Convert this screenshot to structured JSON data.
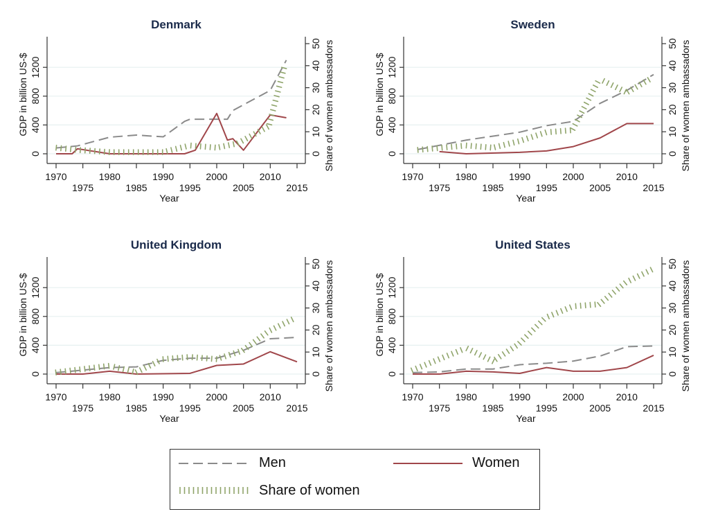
{
  "chart_data": [
    {
      "type": "line",
      "title": "Denmark",
      "xlabel": "Year",
      "ylabel": "GDP in billion US-$",
      "y2label": "Share of women ambassadors",
      "xlim": [
        1970,
        2015
      ],
      "ylim": [
        -100,
        1580
      ],
      "y2lim": [
        -3,
        52
      ],
      "xticks_top": [
        "1970",
        "1980",
        "1990",
        "2000",
        "2010"
      ],
      "xticks_bottom": [
        "1975",
        "1985",
        "1995",
        "2005",
        "2015"
      ],
      "yticks": [
        "0",
        "400",
        "800",
        "1200"
      ],
      "y2ticks": [
        "0",
        "10",
        "20",
        "30",
        "40",
        "50"
      ],
      "grid": true,
      "series": [
        {
          "name": "Men",
          "axis": "left",
          "x": [
            1970,
            1974,
            1980,
            1985,
            1990,
            1994,
            1995,
            2000,
            2002,
            2003,
            2010,
            2013
          ],
          "values": [
            80,
            110,
            230,
            260,
            235,
            450,
            480,
            480,
            480,
            600,
            880,
            1300
          ]
        },
        {
          "name": "Women",
          "axis": "left",
          "x": [
            1970,
            1973,
            1974,
            1980,
            1990,
            1994,
            1996,
            2000,
            2002,
            2003,
            2005,
            2010,
            2013
          ],
          "values": [
            0,
            0,
            70,
            0,
            0,
            0,
            50,
            560,
            190,
            210,
            50,
            540,
            500
          ]
        },
        {
          "name": "Share of women",
          "axis": "right",
          "x": [
            1970,
            1974,
            1980,
            1990,
            1995,
            2000,
            2004,
            2010,
            2013
          ],
          "values": [
            2,
            1,
            0,
            0,
            3,
            2,
            4,
            12,
            40
          ]
        }
      ]
    },
    {
      "type": "line",
      "title": "Sweden",
      "xlabel": "Year",
      "ylabel": "GDP in billion US-$",
      "y2label": "Share of women ambassadors",
      "xlim": [
        1970,
        2015
      ],
      "ylim": [
        -100,
        1580
      ],
      "y2lim": [
        -3,
        52
      ],
      "xticks_top": [
        "1970",
        "1980",
        "1990",
        "2000",
        "2010"
      ],
      "xticks_bottom": [
        "1975",
        "1985",
        "1995",
        "2005",
        "2015"
      ],
      "yticks": [
        "0",
        "400",
        "800",
        "1200"
      ],
      "y2ticks": [
        "0",
        "10",
        "20",
        "30",
        "40",
        "50"
      ],
      "grid": true,
      "series": [
        {
          "name": "Men",
          "axis": "left",
          "x": [
            1971,
            1980,
            1990,
            1995,
            2000,
            2005,
            2010,
            2015
          ],
          "values": [
            60,
            190,
            300,
            390,
            450,
            700,
            880,
            1100
          ]
        },
        {
          "name": "Women",
          "axis": "left",
          "x": [
            1975,
            1980,
            1990,
            1995,
            2000,
            2005,
            2010,
            2015
          ],
          "values": [
            30,
            0,
            20,
            40,
            100,
            220,
            420,
            420
          ]
        },
        {
          "name": "Share of women",
          "axis": "right",
          "x": [
            1971,
            1980,
            1985,
            1990,
            1995,
            2000,
            2005,
            2010,
            2015
          ],
          "values": [
            1,
            3,
            2,
            5,
            9,
            10,
            33,
            27,
            34
          ]
        }
      ]
    },
    {
      "type": "line",
      "title": "United Kingdom",
      "xlabel": "Year",
      "ylabel": "GDP in billion US-$",
      "y2label": "Share of women ambassadors",
      "xlim": [
        1970,
        2015
      ],
      "ylim": [
        -100,
        1580
      ],
      "y2lim": [
        -3,
        52
      ],
      "xticks_top": [
        "1970",
        "1980",
        "1990",
        "2000",
        "2010"
      ],
      "xticks_bottom": [
        "1975",
        "1985",
        "1995",
        "2005",
        "2015"
      ],
      "yticks": [
        "0",
        "400",
        "800",
        "1200"
      ],
      "y2ticks": [
        "0",
        "10",
        "20",
        "30",
        "40",
        "50"
      ],
      "grid": true,
      "series": [
        {
          "name": "Men",
          "axis": "left",
          "x": [
            1970,
            1980,
            1985,
            1990,
            1995,
            2000,
            2005,
            2010,
            2015
          ],
          "values": [
            20,
            90,
            100,
            190,
            220,
            220,
            330,
            490,
            510
          ]
        },
        {
          "name": "Women",
          "axis": "left",
          "x": [
            1970,
            1975,
            1980,
            1985,
            1995,
            2000,
            2005,
            2010,
            2015
          ],
          "values": [
            0,
            0,
            40,
            0,
            10,
            120,
            140,
            310,
            170
          ]
        },
        {
          "name": "Share of women",
          "axis": "right",
          "x": [
            1970,
            1980,
            1985,
            1990,
            1995,
            2000,
            2005,
            2010,
            2015
          ],
          "values": [
            0,
            3,
            0,
            6,
            7,
            6,
            10,
            19,
            25
          ]
        }
      ]
    },
    {
      "type": "line",
      "title": "United States",
      "xlabel": "Year",
      "ylabel": "GDP in billion US-$",
      "y2label": "Share of women ambassadors",
      "xlim": [
        1970,
        2015
      ],
      "ylim": [
        -100,
        1580
      ],
      "y2lim": [
        -3,
        52
      ],
      "xticks_top": [
        "1970",
        "1980",
        "1990",
        "2000",
        "2010"
      ],
      "xticks_bottom": [
        "1975",
        "1985",
        "1995",
        "2005",
        "2015"
      ],
      "yticks": [
        "0",
        "400",
        "800",
        "1200"
      ],
      "y2ticks": [
        "0",
        "10",
        "20",
        "30",
        "40",
        "50"
      ],
      "grid": true,
      "series": [
        {
          "name": "Men",
          "axis": "left",
          "x": [
            1970,
            1975,
            1980,
            1985,
            1990,
            1995,
            2000,
            2005,
            2010,
            2015
          ],
          "values": [
            20,
            30,
            70,
            70,
            130,
            150,
            180,
            250,
            380,
            390
          ]
        },
        {
          "name": "Women",
          "axis": "left",
          "x": [
            1970,
            1975,
            1980,
            1985,
            1990,
            1995,
            2000,
            2005,
            2010,
            2015
          ],
          "values": [
            0,
            0,
            40,
            30,
            10,
            90,
            40,
            40,
            90,
            260
          ]
        },
        {
          "name": "Share of women",
          "axis": "right",
          "x": [
            1970,
            1980,
            1985,
            1990,
            1995,
            2000,
            2005,
            2010,
            2015
          ],
          "values": [
            1,
            11,
            5,
            13,
            25,
            30,
            31,
            41,
            47
          ]
        }
      ]
    }
  ],
  "colors": {
    "men": "#8a8a8a",
    "women": "#a0464a",
    "share": "#8fa46a",
    "axis": "#333333",
    "grid": "#e6f0f0",
    "title": "#1a2a4a"
  },
  "legend": {
    "position": "bottom-center",
    "items": [
      {
        "label": "Men",
        "style": "dashed"
      },
      {
        "label": "Women",
        "style": "solid"
      },
      {
        "label": "Share of women",
        "style": "hatched"
      }
    ]
  }
}
